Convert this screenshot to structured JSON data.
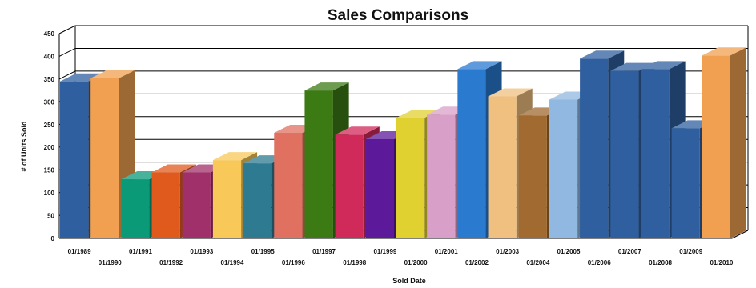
{
  "chart_data": {
    "type": "bar",
    "title": "Sales Comparisons",
    "xlabel": "Sold Date",
    "ylabel": "# of Units Sold",
    "ylim": [
      0,
      450
    ],
    "yticks": [
      "0",
      "50",
      "100",
      "150",
      "200",
      "250",
      "300",
      "350",
      "400",
      "450"
    ],
    "grid": true,
    "legend": "none",
    "categories": [
      "01/1989",
      "01/1990",
      "01/1991",
      "01/1992",
      "01/1993",
      "01/1994",
      "01/1995",
      "01/1996",
      "01/1997",
      "01/1998",
      "01/1999",
      "01/2000",
      "01/2001",
      "01/2002",
      "01/2003",
      "01/2004",
      "01/2005",
      "01/2006",
      "01/2007",
      "01/2008",
      "01/2009",
      "01/2010"
    ],
    "values": [
      345,
      352,
      130,
      145,
      145,
      172,
      165,
      232,
      325,
      228,
      218,
      265,
      272,
      372,
      312,
      270,
      305,
      395,
      368,
      372,
      242,
      402
    ],
    "colors": [
      "#2f5f9e",
      "#f0a050",
      "#0b9a78",
      "#e05a1e",
      "#a0306a",
      "#f8c858",
      "#2e7a90",
      "#e07060",
      "#3c7a14",
      "#d02a5a",
      "#5c1a9a",
      "#e0d030",
      "#d8a0c8",
      "#2a7ad0",
      "#f0c080",
      "#a06a30",
      "#90b8e0",
      "#2f5f9e",
      "#2f5f9e",
      "#2f5f9e",
      "#2f5f9e",
      "#f0a050"
    ]
  }
}
